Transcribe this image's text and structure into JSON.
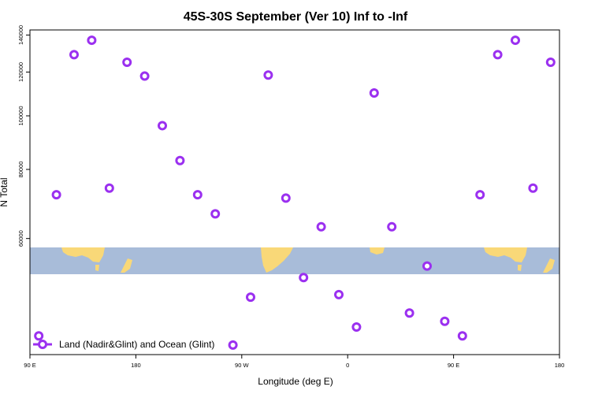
{
  "chart_data": {
    "type": "scatter",
    "title": "45S-30S September (Ver 10)   Inf to -Inf",
    "xlabel": "Longitude (deg E)",
    "ylabel": "N Total",
    "x_ticks": [
      {
        "value": 90,
        "label": "90 E"
      },
      {
        "value": 180,
        "label": "180"
      },
      {
        "value": 270,
        "label": "90 W"
      },
      {
        "value": 360,
        "label": "0"
      },
      {
        "value": 450,
        "label": "90 E"
      },
      {
        "value": 540,
        "label": "180"
      }
    ],
    "y_ticks": [
      {
        "value": 60000,
        "label": "60000"
      },
      {
        "value": 80000,
        "label": "80000"
      },
      {
        "value": 100000,
        "label": "100000"
      },
      {
        "value": 120000,
        "label": "120000"
      },
      {
        "value": 140000,
        "label": "140000"
      }
    ],
    "xlim": [
      90,
      540
    ],
    "y_scale": "log",
    "ylim": [
      37000,
      143000
    ],
    "grid": false,
    "legend_position": "bottom-left",
    "background_map": "world land/ocean map strip for 45S-30S",
    "colors": {
      "series": "#9b30f0",
      "ocean": "#a8bcd9",
      "land": "#f9d878"
    },
    "series": [
      {
        "name": "Land (Nadir&Glint) and Ocean (Glint)",
        "color": "#9b30f0",
        "points": [
          {
            "x": 97.5,
            "y": 40000
          },
          {
            "x": 112.5,
            "y": 72000
          },
          {
            "x": 127.5,
            "y": 129000
          },
          {
            "x": 142.5,
            "y": 137000
          },
          {
            "x": 157.5,
            "y": 74000
          },
          {
            "x": 172.5,
            "y": 125000
          },
          {
            "x": 187.5,
            "y": 118000
          },
          {
            "x": 202.5,
            "y": 96000
          },
          {
            "x": 217.5,
            "y": 83000
          },
          {
            "x": 232.5,
            "y": 72000
          },
          {
            "x": 247.5,
            "y": 66500
          },
          {
            "x": 262.5,
            "y": 38500
          },
          {
            "x": 277.5,
            "y": 47000
          },
          {
            "x": 292.5,
            "y": 118500
          },
          {
            "x": 307.5,
            "y": 71000
          },
          {
            "x": 322.5,
            "y": 51000
          },
          {
            "x": 337.5,
            "y": 63000
          },
          {
            "x": 352.5,
            "y": 47500
          },
          {
            "x": 367.5,
            "y": 41500
          },
          {
            "x": 382.5,
            "y": 110000
          },
          {
            "x": 397.5,
            "y": 63000
          },
          {
            "x": 412.5,
            "y": 44000
          },
          {
            "x": 427.5,
            "y": 53500
          },
          {
            "x": 442.5,
            "y": 42500
          },
          {
            "x": 457.5,
            "y": 40000
          },
          {
            "x": 472.5,
            "y": 72000
          },
          {
            "x": 487.5,
            "y": 129000
          },
          {
            "x": 502.5,
            "y": 137000
          },
          {
            "x": 517.5,
            "y": 74000
          },
          {
            "x": 532.5,
            "y": 125000
          }
        ]
      }
    ]
  }
}
